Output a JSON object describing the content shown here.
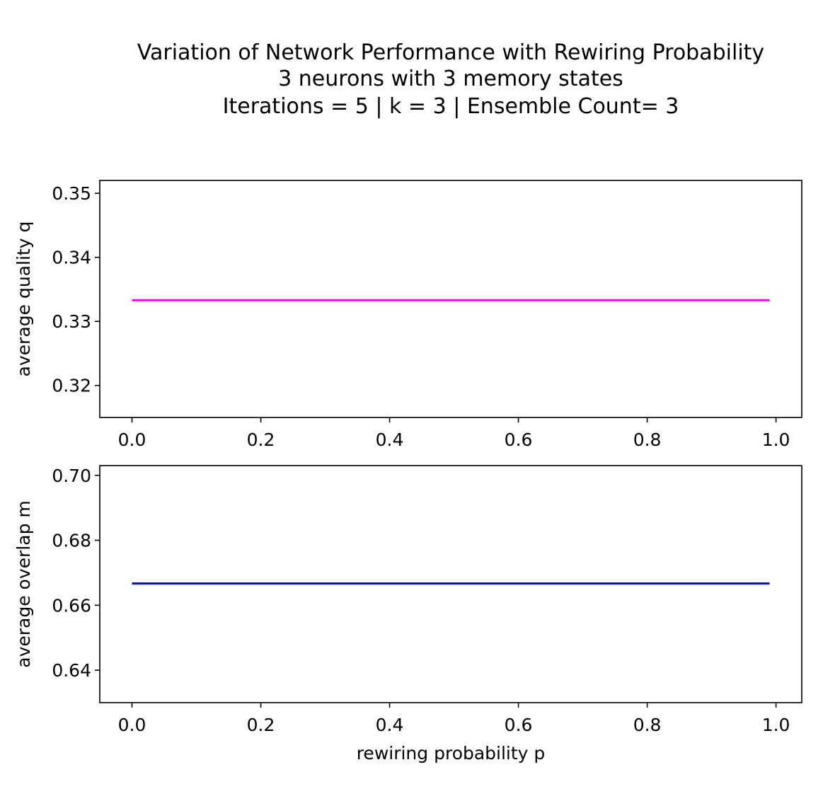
{
  "figure": {
    "title_lines": [
      "Variation of Network Performance with Rewiring Probability",
      "3 neurons with 3 memory states",
      "Iterations = 5 |  k = 3 | Ensemble Count= 3"
    ]
  },
  "chart_data": [
    {
      "type": "line",
      "xlabel": "",
      "ylabel": "average quality q",
      "xlim": [
        -0.05,
        1.04
      ],
      "ylim": [
        0.315,
        0.352
      ],
      "xticks": [
        0.0,
        0.2,
        0.4,
        0.6,
        0.8,
        1.0
      ],
      "xtick_labels": [
        "0.0",
        "0.2",
        "0.4",
        "0.6",
        "0.8",
        "1.0"
      ],
      "yticks": [
        0.32,
        0.33,
        0.34,
        0.35
      ],
      "ytick_labels": [
        "0.32",
        "0.33",
        "0.34",
        "0.35"
      ],
      "grid": false,
      "series": [
        {
          "color": "#ff00ff",
          "x": [
            0.0,
            0.99
          ],
          "y": [
            0.3333,
            0.3333
          ]
        }
      ]
    },
    {
      "type": "line",
      "xlabel": "rewiring probability p",
      "ylabel": "average overlap m",
      "xlim": [
        -0.05,
        1.04
      ],
      "ylim": [
        0.63,
        0.703
      ],
      "xticks": [
        0.0,
        0.2,
        0.4,
        0.6,
        0.8,
        1.0
      ],
      "xtick_labels": [
        "0.0",
        "0.2",
        "0.4",
        "0.6",
        "0.8",
        "1.0"
      ],
      "yticks": [
        0.64,
        0.66,
        0.68,
        0.7
      ],
      "ytick_labels": [
        "0.64",
        "0.66",
        "0.68",
        "0.70"
      ],
      "grid": false,
      "series": [
        {
          "color": "#0000ff",
          "x": [
            0.0,
            0.99
          ],
          "y": [
            0.6667,
            0.6667
          ]
        }
      ]
    }
  ]
}
